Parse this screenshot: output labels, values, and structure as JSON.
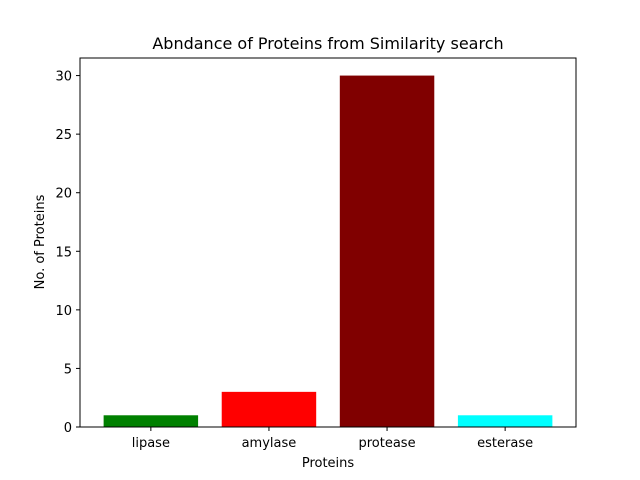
{
  "chart_data": {
    "type": "bar",
    "title": "Abndance of Proteins from Similarity search",
    "xlabel": "Proteins",
    "ylabel": "No. of Proteins",
    "categories": [
      "lipase",
      "amylase",
      "protease",
      "esterase"
    ],
    "values": [
      1,
      3,
      30,
      1
    ],
    "colors": [
      "#008000",
      "#ff0000",
      "#800000",
      "#00ffff"
    ],
    "ylim": [
      0,
      31.5
    ],
    "yticks": [
      0,
      5,
      10,
      15,
      20,
      25,
      30
    ],
    "grid": false
  }
}
